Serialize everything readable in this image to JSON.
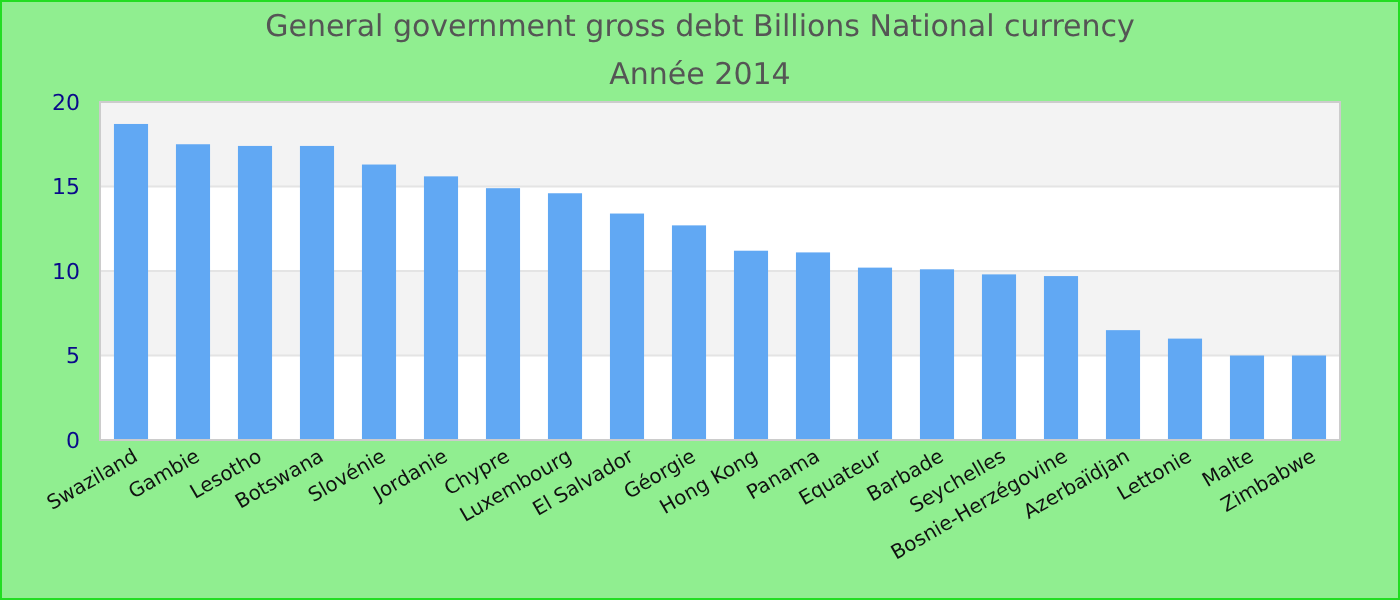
{
  "chart_data": {
    "type": "bar",
    "title": "General government gross debt Billions National currency",
    "subtitle": "Année 2014",
    "categories": [
      "Swaziland",
      "Gambie",
      "Lesotho",
      "Botswana",
      "Slovénie",
      "Jordanie",
      "Chypre",
      "Luxembourg",
      "El Salvador",
      "Géorgie",
      "Hong Kong",
      "Panama",
      "Equateur",
      "Barbade",
      "Seychelles",
      "Bosnie-Herzégovine",
      "Azerbaïdjan",
      "Lettonie",
      "Malte",
      "Zimbabwe"
    ],
    "values": [
      18.7,
      17.5,
      17.4,
      17.4,
      16.3,
      15.6,
      14.9,
      14.6,
      13.4,
      12.7,
      11.2,
      11.1,
      10.2,
      10.1,
      9.8,
      9.7,
      6.5,
      6.0,
      5.0,
      5.0
    ],
    "color": "#61a8f3",
    "ylim": [
      0,
      20
    ],
    "yticks": [
      0,
      5,
      10,
      15,
      20
    ],
    "grid": "y"
  }
}
